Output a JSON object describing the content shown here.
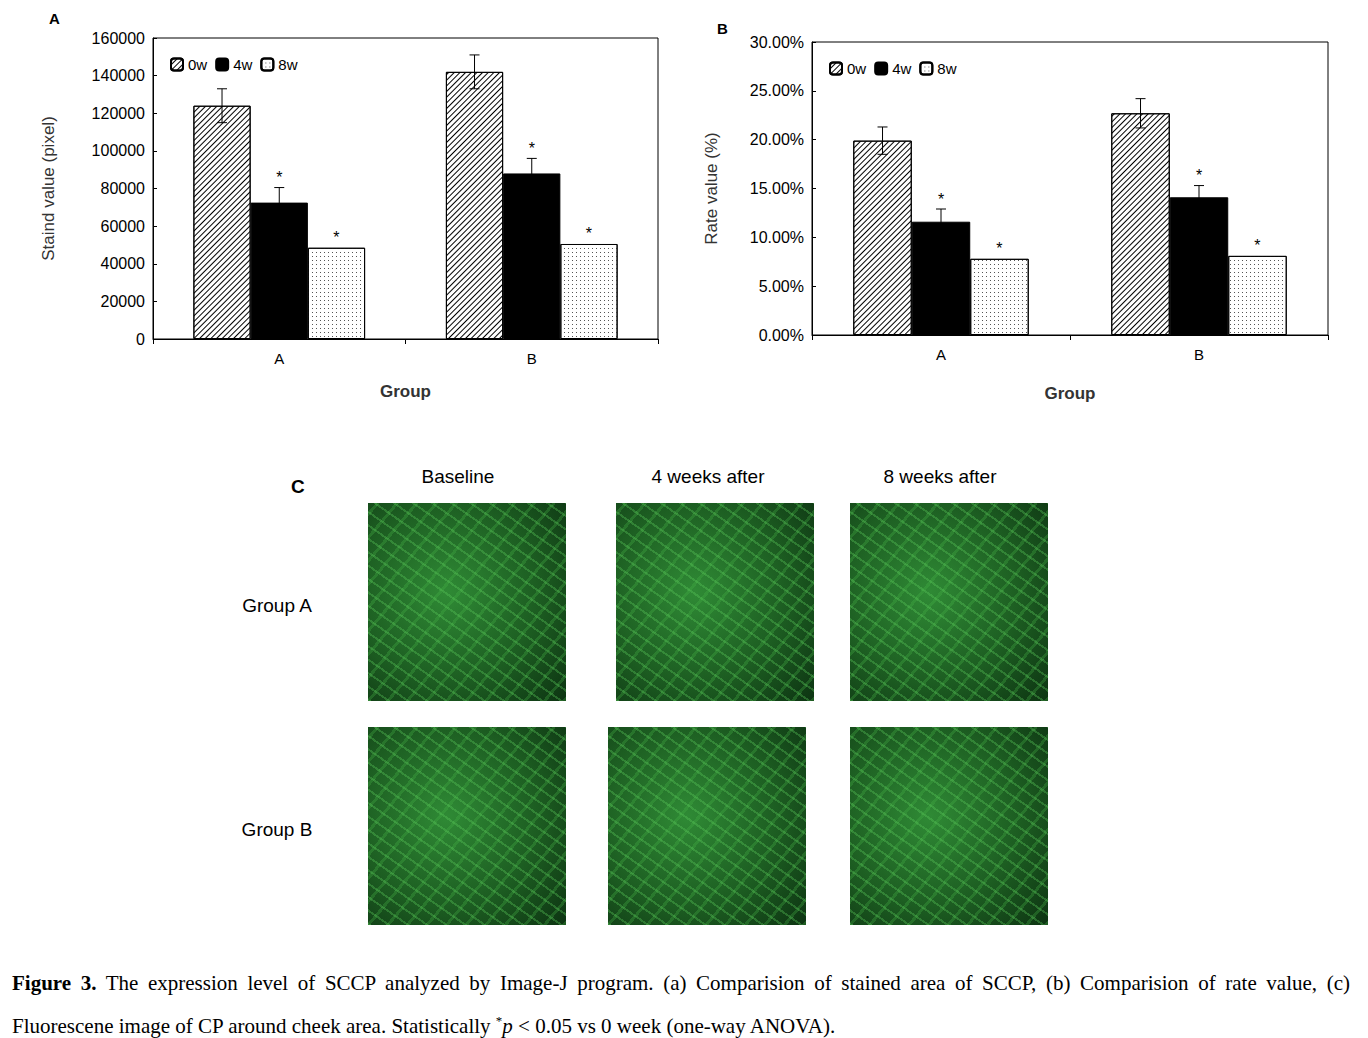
{
  "chart_data": [
    {
      "type": "bar",
      "title": "A",
      "x_label": "Group",
      "y_label": "Staind value (pixel)",
      "categories": [
        "A",
        "B"
      ],
      "series": [
        {
          "name": "0w",
          "color": "#ffffff",
          "values": [
            124000,
            142000
          ],
          "errors": [
            9000,
            9000
          ]
        },
        {
          "name": "4w",
          "color": "#000000",
          "values": [
            72500,
            88000
          ],
          "errors": [
            8000,
            8000
          ],
          "annotations": [
            "*",
            "*"
          ]
        },
        {
          "name": "8w",
          "color": "#ffffff",
          "values": [
            48500,
            50500
          ],
          "annotations": [
            "*",
            "*"
          ]
        }
      ],
      "ylim": [
        0,
        160000
      ],
      "yticks": [
        0,
        20000,
        40000,
        60000,
        80000,
        100000,
        120000,
        140000,
        160000
      ],
      "grid": false,
      "legend": "upper left"
    },
    {
      "type": "bar",
      "title": "B",
      "x_label": "Group",
      "y_label": "Rate value (%)",
      "categories": [
        "A",
        "B"
      ],
      "series": [
        {
          "name": "0w",
          "color": "#ffffff",
          "values": [
            19.9,
            22.7
          ],
          "errors": [
            1.4,
            1.5
          ]
        },
        {
          "name": "4w",
          "color": "#000000",
          "values": [
            11.6,
            14.1
          ],
          "errors": [
            1.3,
            1.2
          ],
          "annotations": [
            "*",
            "*"
          ]
        },
        {
          "name": "8w",
          "color": "#ffffff",
          "values": [
            7.8,
            8.1
          ],
          "annotations": [
            "*",
            "*"
          ]
        }
      ],
      "ylim": [
        0,
        30
      ],
      "yticks": [
        {
          "value": 0,
          "label": "0.00%"
        },
        {
          "value": 5,
          "label": "5.00%"
        },
        {
          "value": 10,
          "label": "10.00%"
        },
        {
          "value": 15,
          "label": "15.00%"
        },
        {
          "value": 20,
          "label": "20.00%"
        },
        {
          "value": 25,
          "label": "25.00%"
        },
        {
          "value": 30,
          "label": "30.00%"
        }
      ],
      "grid": false,
      "legend": "upper left"
    }
  ],
  "panel_c": {
    "label": "C",
    "columns": [
      "Baseline",
      "4 weeks after",
      "8 weeks after"
    ],
    "rows": [
      "Group A",
      "Group B"
    ]
  },
  "caption": {
    "label": "Figure 3.",
    "text": " The expression level of SCCP analyzed by Image-J program. (a) Comparision of stained area of SCCP, (b) Comparision of rate value, (c) Fluorescene image of CP around cheek area. Statistically ",
    "sup": "*",
    "italic": "p",
    "rest": " < 0.05 vs 0 week (one-way ANOVA)."
  }
}
